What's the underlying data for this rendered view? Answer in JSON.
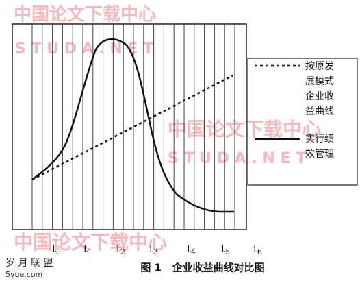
{
  "watermarks": {
    "top_cn": "中国论文下载中心",
    "top_en": "S T U D A . N E T",
    "mid_cn": "中国论文下载中心",
    "mid_en": "S T U D A . N E T",
    "bottom_cn": "中国论文下载中心",
    "corner_cn": "岁 月 联 盟",
    "corner_en": "5yue.com"
  },
  "legend": {
    "dashed": [
      "按原发",
      "展模式",
      "企业收",
      "益曲线"
    ],
    "solid": [
      "实行绩",
      "效管理"
    ]
  },
  "x_labels": [
    {
      "base": "t",
      "sub": "0"
    },
    {
      "base": "t",
      "sub": "1"
    },
    {
      "base": "t",
      "sub": "2"
    },
    {
      "base": "t",
      "sub": "3"
    },
    {
      "base": "t",
      "sub": "4"
    },
    {
      "base": "t",
      "sub": "5"
    },
    {
      "base": "t",
      "sub": "6"
    }
  ],
  "caption": "图 1   企业收益曲线对比图"
}
